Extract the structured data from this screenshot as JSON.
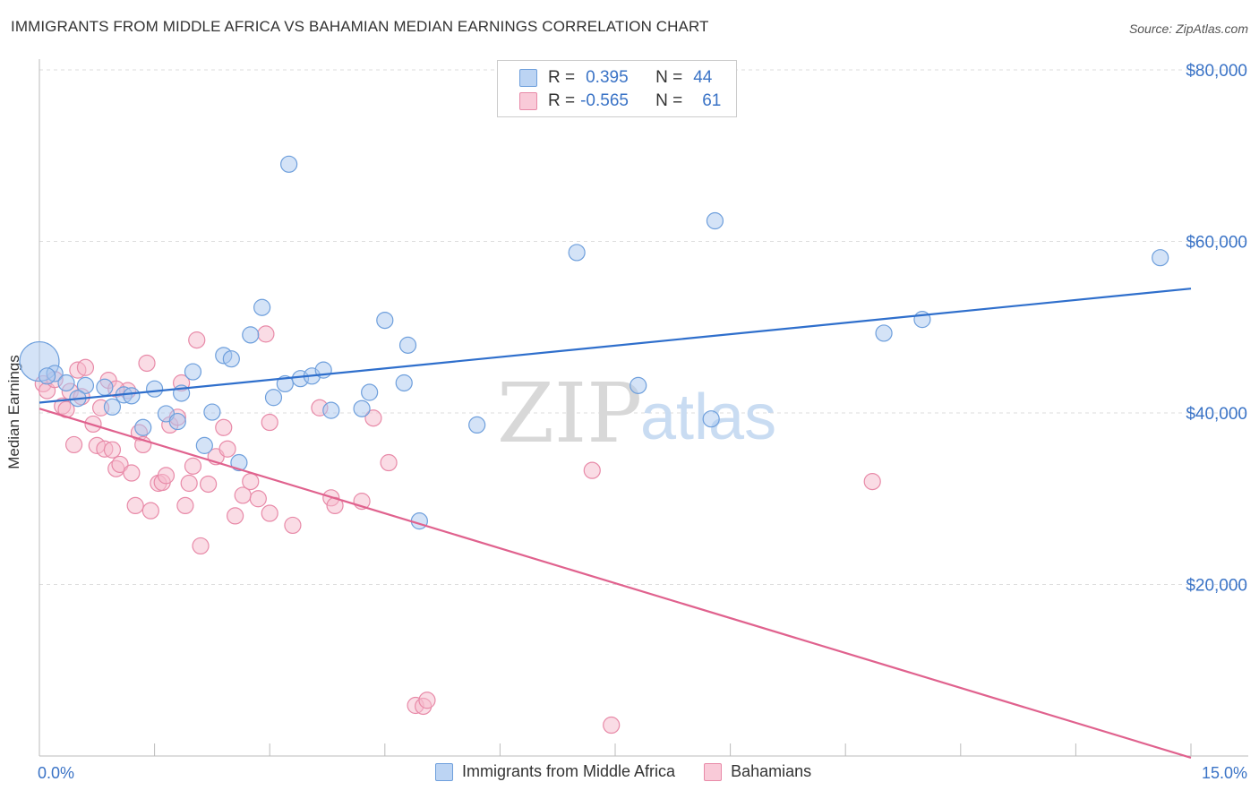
{
  "title": "IMMIGRANTS FROM MIDDLE AFRICA VS BAHAMIAN MEDIAN EARNINGS CORRELATION CHART",
  "source": "Source: ZipAtlas.com",
  "watermark": {
    "zip": "ZIP",
    "atlas": "atlas"
  },
  "legend_top": {
    "rows": [
      {
        "r_label": "R =",
        "r_value": "0.395",
        "n_label": "N =",
        "n_value": "44"
      },
      {
        "r_label": "R =",
        "r_value": "-0.565",
        "n_label": "N =",
        "n_value": "61"
      }
    ]
  },
  "legend_bottom": {
    "items": [
      "Immigrants from Middle Africa",
      "Bahamians"
    ]
  },
  "colors": {
    "blue_fill": "#a9c8ef",
    "blue_stroke": "#6e9fdc",
    "blue_line": "#2f6fcc",
    "pink_fill": "#f6b9cb",
    "pink_stroke": "#e88aa8",
    "pink_line": "#e0628e",
    "axis_text": "#3a73c6",
    "grid": "#dddddd"
  },
  "chart_data": {
    "type": "scatter",
    "xlabel": "",
    "ylabel": "Median Earnings",
    "xlim": [
      0,
      15
    ],
    "ylim": [
      0,
      80000
    ],
    "x_tick_labels": [
      "0.0%",
      "15.0%"
    ],
    "y_ticks": [
      20000,
      40000,
      60000,
      80000
    ],
    "y_tick_labels": [
      "$20,000",
      "$40,000",
      "$60,000",
      "$80,000"
    ],
    "grid": true,
    "series": [
      {
        "name": "Immigrants from Middle Africa",
        "color": "blue",
        "points": [
          [
            0.0,
            46000
          ],
          [
            0.2,
            44600
          ],
          [
            0.35,
            43500
          ],
          [
            0.6,
            43200
          ],
          [
            0.5,
            41700
          ],
          [
            0.85,
            43000
          ],
          [
            0.95,
            40700
          ],
          [
            1.1,
            42100
          ],
          [
            1.2,
            42000
          ],
          [
            1.35,
            38300
          ],
          [
            1.5,
            42800
          ],
          [
            1.65,
            39900
          ],
          [
            1.8,
            39000
          ],
          [
            1.85,
            42300
          ],
          [
            2.0,
            44800
          ],
          [
            2.15,
            36200
          ],
          [
            2.25,
            40100
          ],
          [
            2.4,
            46700
          ],
          [
            2.5,
            46300
          ],
          [
            2.6,
            34200
          ],
          [
            2.75,
            49100
          ],
          [
            2.9,
            52300
          ],
          [
            3.05,
            41800
          ],
          [
            3.2,
            43400
          ],
          [
            3.25,
            69000
          ],
          [
            3.4,
            44000
          ],
          [
            3.55,
            44300
          ],
          [
            3.7,
            45000
          ],
          [
            3.8,
            40300
          ],
          [
            4.2,
            40500
          ],
          [
            4.3,
            42400
          ],
          [
            4.5,
            50800
          ],
          [
            4.75,
            43500
          ],
          [
            4.8,
            47900
          ],
          [
            4.95,
            27400
          ],
          [
            5.7,
            38600
          ],
          [
            7.0,
            58700
          ],
          [
            7.8,
            43200
          ],
          [
            8.75,
            39300
          ],
          [
            8.8,
            62400
          ],
          [
            11.0,
            49300
          ],
          [
            11.5,
            50900
          ],
          [
            14.6,
            58100
          ],
          [
            0.1,
            44300
          ]
        ],
        "trend": {
          "x": [
            0.0,
            15.0
          ],
          "y": [
            41200,
            54500
          ]
        }
      },
      {
        "name": "Bahamians",
        "color": "pink",
        "points": [
          [
            0.05,
            43400
          ],
          [
            0.1,
            42600
          ],
          [
            0.2,
            43900
          ],
          [
            0.3,
            40800
          ],
          [
            0.35,
            40400
          ],
          [
            0.4,
            42500
          ],
          [
            0.45,
            36300
          ],
          [
            0.5,
            45000
          ],
          [
            0.55,
            41900
          ],
          [
            0.6,
            45300
          ],
          [
            0.7,
            38700
          ],
          [
            0.75,
            36200
          ],
          [
            0.8,
            40600
          ],
          [
            0.85,
            35800
          ],
          [
            0.9,
            43800
          ],
          [
            0.95,
            35700
          ],
          [
            1.0,
            33500
          ],
          [
            1.05,
            34000
          ],
          [
            1.15,
            42600
          ],
          [
            1.2,
            33000
          ],
          [
            1.25,
            29200
          ],
          [
            1.3,
            37700
          ],
          [
            1.35,
            36300
          ],
          [
            1.4,
            45800
          ],
          [
            1.45,
            28600
          ],
          [
            1.55,
            31800
          ],
          [
            1.6,
            31900
          ],
          [
            1.65,
            32700
          ],
          [
            1.7,
            38600
          ],
          [
            1.8,
            39500
          ],
          [
            1.85,
            43500
          ],
          [
            1.9,
            29200
          ],
          [
            1.95,
            31800
          ],
          [
            2.0,
            33800
          ],
          [
            2.05,
            48500
          ],
          [
            2.1,
            24500
          ],
          [
            2.2,
            31700
          ],
          [
            2.3,
            34900
          ],
          [
            2.4,
            38300
          ],
          [
            2.45,
            35800
          ],
          [
            2.55,
            28000
          ],
          [
            2.65,
            30400
          ],
          [
            2.75,
            32000
          ],
          [
            2.85,
            30000
          ],
          [
            2.95,
            49200
          ],
          [
            3.0,
            38900
          ],
          [
            3.0,
            28300
          ],
          [
            3.3,
            26900
          ],
          [
            3.65,
            40600
          ],
          [
            3.8,
            30100
          ],
          [
            3.85,
            29200
          ],
          [
            4.2,
            29700
          ],
          [
            4.35,
            39400
          ],
          [
            4.55,
            34200
          ],
          [
            4.9,
            5900
          ],
          [
            5.0,
            5800
          ],
          [
            5.05,
            6500
          ],
          [
            7.2,
            33300
          ],
          [
            7.45,
            3600
          ],
          [
            10.85,
            32000
          ],
          [
            1.0,
            42800
          ]
        ],
        "trend": {
          "x": [
            0.0,
            15.0
          ],
          "y": [
            40500,
            -200
          ]
        }
      }
    ]
  }
}
